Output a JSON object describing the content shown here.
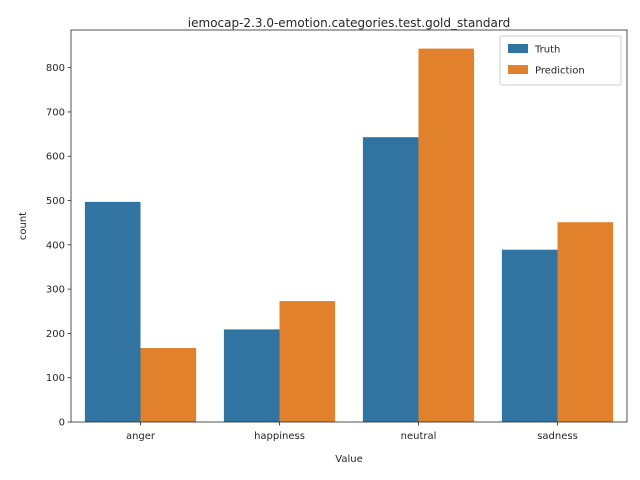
{
  "chart_data": {
    "type": "bar",
    "title": "iemocap-2.3.0-emotion.categories.test.gold_standard",
    "xlabel": "Value",
    "ylabel": "count",
    "categories": [
      "anger",
      "happiness",
      "neutral",
      "sadness"
    ],
    "series": [
      {
        "name": "Truth",
        "color": "#3274a1",
        "values": [
          497,
          209,
          643,
          389
        ]
      },
      {
        "name": "Prediction",
        "color": "#e1812c",
        "values": [
          167,
          273,
          843,
          451
        ]
      }
    ],
    "ylim": [
      0,
      885
    ],
    "yticks": [
      0,
      100,
      200,
      300,
      400,
      500,
      600,
      700,
      800
    ],
    "grid": false,
    "legend_position": "top-right"
  }
}
